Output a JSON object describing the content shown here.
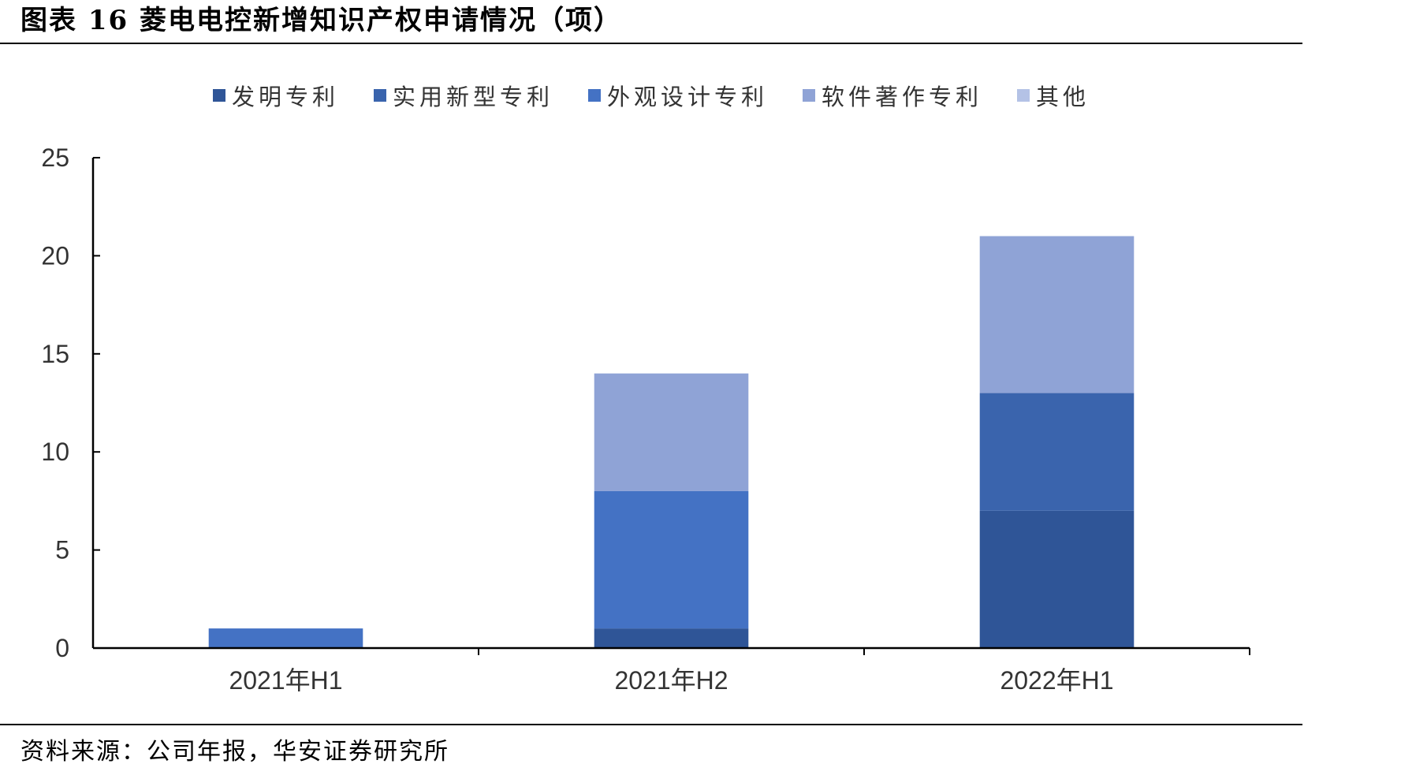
{
  "figure": {
    "title": "图表 16  菱电电控新增知识产权申请情况（项）",
    "source": "资料来源：公司年报，华安证券研究所"
  },
  "chart_data": {
    "type": "bar",
    "stacked": true,
    "categories": [
      "2021年H1",
      "2021年H2",
      "2022年H1"
    ],
    "series": [
      {
        "name": "发明专利",
        "color": "#2F5597",
        "values": [
          0,
          1,
          7
        ]
      },
      {
        "name": "实用新型专利",
        "color": "#3A64AD",
        "values": [
          0,
          0,
          6
        ]
      },
      {
        "name": "外观设计专利",
        "color": "#4472C4",
        "values": [
          1,
          7,
          0
        ]
      },
      {
        "name": "软件著作专利",
        "color": "#8FA3D6",
        "values": [
          0,
          6,
          8
        ]
      },
      {
        "name": "其他",
        "color": "#B4C2E6",
        "values": [
          0,
          0,
          0
        ]
      }
    ],
    "ylim": [
      0,
      25
    ],
    "yticks": [
      0,
      5,
      10,
      15,
      20,
      25
    ],
    "legend_position": "top",
    "grid": false
  }
}
